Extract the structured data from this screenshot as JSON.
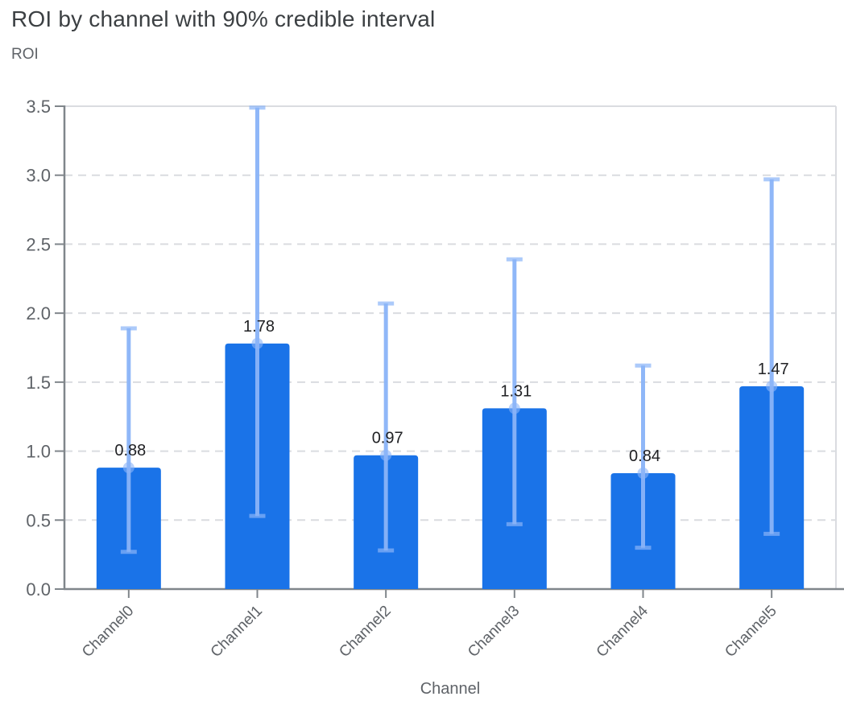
{
  "page": {
    "background": "#ffffff"
  },
  "chart_data": {
    "type": "bar",
    "title": "ROI by channel with 90% credible interval",
    "ylabel": "ROI",
    "xlabel": "Channel",
    "categories": [
      "Channel0",
      "Channel1",
      "Channel2",
      "Channel3",
      "Channel4",
      "Channel5"
    ],
    "series": [
      {
        "name": "ROI mean",
        "values": [
          0.88,
          1.78,
          0.97,
          1.31,
          0.84,
          1.47
        ]
      },
      {
        "name": "90% credible interval lower",
        "values": [
          0.27,
          0.53,
          0.28,
          0.47,
          0.3,
          0.4
        ]
      },
      {
        "name": "90% credible interval upper",
        "values": [
          1.89,
          3.49,
          2.07,
          2.39,
          1.62,
          2.97
        ]
      }
    ],
    "bar_labels": [
      "0.88",
      "1.78",
      "0.97",
      "1.31",
      "0.84",
      "1.47"
    ],
    "ylim": [
      0,
      3.5
    ],
    "yticks": [
      0,
      0.5,
      1.0,
      1.5,
      2.0,
      2.5,
      3.0,
      3.5
    ],
    "ytick_labels": [
      "0.0",
      "0.5",
      "1.0",
      "1.5",
      "2.0",
      "2.5",
      "3.0",
      "3.5"
    ],
    "grid": "horizontal-dashed",
    "legend": "none",
    "category_label_angle_deg": -45,
    "colors": {
      "bar": "#1a73e8",
      "credible_interval": "#8ab4f8",
      "mean_marker": "#8ab4f8",
      "title_text": "#3c4043",
      "axis_text": "#5f6368",
      "bar_label_text": "#202124",
      "axis_line": "#80868b",
      "gridline": "#dadce0"
    }
  }
}
